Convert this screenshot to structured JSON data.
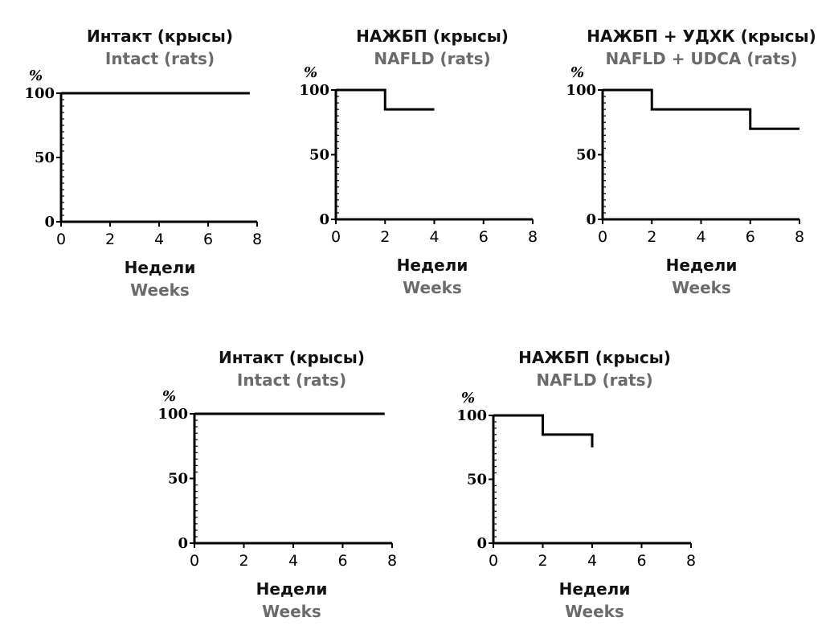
{
  "chart_data": [
    {
      "type": "line",
      "step": true,
      "title": "Интакт (крысы)",
      "subtitle": "Intact (rats)",
      "xlabel": "Недели",
      "xlabel_en": "Weeks",
      "ylabel": "%",
      "xlim": [
        0,
        8
      ],
      "ylim": [
        0,
        100
      ],
      "xticks": [
        0,
        2,
        4,
        6,
        8
      ],
      "yticks": [
        0,
        50,
        100
      ],
      "series": [
        {
          "name": "Intact",
          "x": [
            0,
            7.7
          ],
          "values": [
            100,
            100
          ]
        }
      ]
    },
    {
      "type": "line",
      "step": true,
      "title": "НАЖБП (крысы)",
      "subtitle": "NAFLD (rats)",
      "xlabel": "Недели",
      "xlabel_en": "Weeks",
      "ylabel": "%",
      "xlim": [
        0,
        8
      ],
      "ylim": [
        0,
        100
      ],
      "xticks": [
        0,
        2,
        4,
        6,
        8
      ],
      "yticks": [
        0,
        50,
        100
      ],
      "series": [
        {
          "name": "NAFLD",
          "x": [
            0,
            2,
            4
          ],
          "values": [
            100,
            85,
            85
          ]
        }
      ]
    },
    {
      "type": "line",
      "step": true,
      "title": "НАЖБП + УДХК (крысы)",
      "subtitle": "NAFLD + UDCA (rats)",
      "xlabel": "Недели",
      "xlabel_en": "Weeks",
      "ylabel": "%",
      "xlim": [
        0,
        8
      ],
      "ylim": [
        0,
        100
      ],
      "xticks": [
        0,
        2,
        4,
        6,
        8
      ],
      "yticks": [
        0,
        50,
        100
      ],
      "series": [
        {
          "name": "NAFLD + UDCA",
          "x": [
            0,
            2,
            6,
            8
          ],
          "values": [
            100,
            85,
            70,
            70
          ]
        }
      ]
    },
    {
      "type": "line",
      "step": true,
      "title": "Интакт (крысы)",
      "subtitle": "Intact (rats)",
      "xlabel": "Недели",
      "xlabel_en": "Weeks",
      "ylabel": "%",
      "xlim": [
        0,
        8
      ],
      "ylim": [
        0,
        100
      ],
      "xticks": [
        0,
        2,
        4,
        6,
        8
      ],
      "yticks": [
        0,
        50,
        100
      ],
      "series": [
        {
          "name": "Intact",
          "x": [
            0,
            7.7
          ],
          "values": [
            100,
            100
          ]
        }
      ]
    },
    {
      "type": "line",
      "step": true,
      "title": "НАЖБП (крысы)",
      "subtitle": "NAFLD (rats)",
      "xlabel": "Недели",
      "xlabel_en": "Weeks",
      "ylabel": "%",
      "xlim": [
        0,
        8
      ],
      "ylim": [
        0,
        100
      ],
      "xticks": [
        0,
        2,
        4,
        6,
        8
      ],
      "yticks": [
        0,
        50,
        100
      ],
      "series": [
        {
          "name": "NAFLD",
          "x": [
            0,
            2,
            4,
            4
          ],
          "values": [
            100,
            85,
            85,
            75
          ]
        }
      ]
    }
  ]
}
